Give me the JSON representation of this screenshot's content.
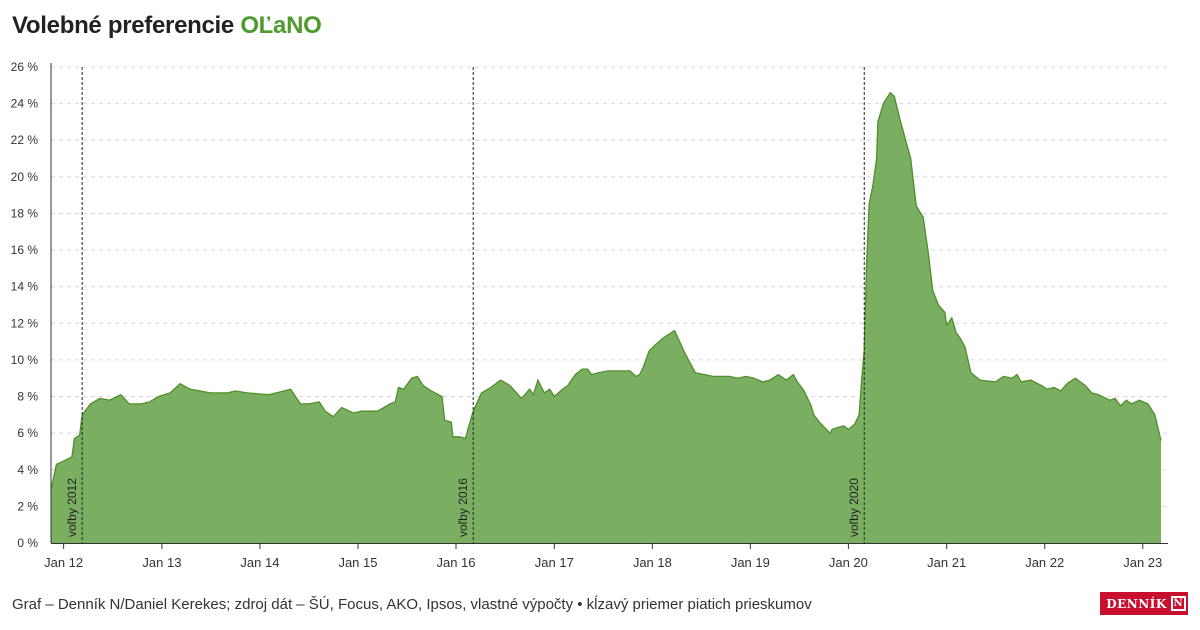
{
  "header": {
    "title_prefix": "Volebné preferencie ",
    "title_party": "OĽaNO"
  },
  "footer": {
    "source": "Graf – Denník N/Daniel Kerekes; zdroj dát – ŠÚ, Focus, AKO, Ipsos, vlastné výpočty • kĺzavý priemer piatich prieskumov",
    "logo_text": "DENNÍK",
    "logo_mark": "N"
  },
  "colors": {
    "area": "#7aaf62",
    "line": "#4e8f2a",
    "accent": "#4e9a2c",
    "grid": "#d8d8d8"
  },
  "chart_data": {
    "type": "area",
    "title": "Volebné preferencie OĽaNO",
    "xlabel": "",
    "ylabel": "",
    "ylim": [
      0,
      26
    ],
    "xlim": [
      "2011-11-15",
      "2023-04-05"
    ],
    "grid": true,
    "y_ticks": [
      "0 %",
      "2 %",
      "4 %",
      "6 %",
      "8 %",
      "10 %",
      "12 %",
      "14 %",
      "16 %",
      "18 %",
      "20 %",
      "22 %",
      "24 %",
      "26 %"
    ],
    "x_ticks": [
      {
        "date": "2012-01-01",
        "label": "Jan 12"
      },
      {
        "date": "2013-01-01",
        "label": "Jan 13"
      },
      {
        "date": "2014-01-01",
        "label": "Jan 14"
      },
      {
        "date": "2015-01-01",
        "label": "Jan 15"
      },
      {
        "date": "2016-01-01",
        "label": "Jan 16"
      },
      {
        "date": "2017-01-01",
        "label": "Jan 17"
      },
      {
        "date": "2018-01-01",
        "label": "Jan 18"
      },
      {
        "date": "2019-01-01",
        "label": "Jan 19"
      },
      {
        "date": "2020-01-01",
        "label": "Jan 20"
      },
      {
        "date": "2021-01-01",
        "label": "Jan 21"
      },
      {
        "date": "2022-01-01",
        "label": "Jan 22"
      },
      {
        "date": "2023-01-01",
        "label": "Jan 23"
      }
    ],
    "events": [
      {
        "date": "2012-03-10",
        "label": "voľby 2012"
      },
      {
        "date": "2016-03-05",
        "label": "voľby 2016"
      },
      {
        "date": "2020-02-29",
        "label": "voľby 2020"
      }
    ],
    "series": [
      {
        "points": [
          [
            "2011-11-15",
            2.9
          ],
          [
            "2011-12-05",
            4.3
          ],
          [
            "2012-01-05",
            4.5
          ],
          [
            "2012-02-01",
            4.7
          ],
          [
            "2012-02-10",
            5.7
          ],
          [
            "2012-03-01",
            5.9
          ],
          [
            "2012-03-10",
            7.0
          ],
          [
            "2012-04-10",
            7.6
          ],
          [
            "2012-05-15",
            7.9
          ],
          [
            "2012-06-20",
            7.8
          ],
          [
            "2012-08-01",
            8.1
          ],
          [
            "2012-09-01",
            7.6
          ],
          [
            "2012-10-15",
            7.6
          ],
          [
            "2012-11-15",
            7.7
          ],
          [
            "2012-12-20",
            8.0
          ],
          [
            "2013-02-01",
            8.2
          ],
          [
            "2013-03-10",
            8.7
          ],
          [
            "2013-04-15",
            8.4
          ],
          [
            "2013-07-01",
            8.2
          ],
          [
            "2013-09-01",
            8.2
          ],
          [
            "2013-10-01",
            8.3
          ],
          [
            "2013-11-15",
            8.2
          ],
          [
            "2014-02-01",
            8.1
          ],
          [
            "2014-04-01",
            8.3
          ],
          [
            "2014-04-25",
            8.4
          ],
          [
            "2014-06-01",
            7.6
          ],
          [
            "2014-07-01",
            7.6
          ],
          [
            "2014-08-10",
            7.7
          ],
          [
            "2014-09-01",
            7.2
          ],
          [
            "2014-10-01",
            6.9
          ],
          [
            "2014-11-01",
            7.4
          ],
          [
            "2014-12-15",
            7.1
          ],
          [
            "2015-01-15",
            7.2
          ],
          [
            "2015-03-15",
            7.2
          ],
          [
            "2015-05-01",
            7.6
          ],
          [
            "2015-05-20",
            7.7
          ],
          [
            "2015-06-01",
            8.5
          ],
          [
            "2015-06-20",
            8.4
          ],
          [
            "2015-07-20",
            9.0
          ],
          [
            "2015-08-10",
            9.1
          ],
          [
            "2015-09-01",
            8.6
          ],
          [
            "2015-10-01",
            8.3
          ],
          [
            "2015-11-10",
            8.0
          ],
          [
            "2015-11-20",
            6.7
          ],
          [
            "2015-12-15",
            6.6
          ],
          [
            "2015-12-20",
            5.8
          ],
          [
            "2016-01-15",
            5.8
          ],
          [
            "2016-02-05",
            5.7
          ],
          [
            "2016-02-20",
            6.5
          ],
          [
            "2016-03-05",
            7.2
          ],
          [
            "2016-04-05",
            8.2
          ],
          [
            "2016-05-10",
            8.5
          ],
          [
            "2016-06-15",
            8.9
          ],
          [
            "2016-07-20",
            8.6
          ],
          [
            "2016-09-01",
            7.9
          ],
          [
            "2016-10-01",
            8.4
          ],
          [
            "2016-10-15",
            8.1
          ],
          [
            "2016-11-01",
            8.9
          ],
          [
            "2016-11-25",
            8.2
          ],
          [
            "2016-12-15",
            8.4
          ],
          [
            "2017-01-01",
            8.0
          ],
          [
            "2017-02-01",
            8.4
          ],
          [
            "2017-02-20",
            8.6
          ],
          [
            "2017-03-20",
            9.2
          ],
          [
            "2017-04-15",
            9.5
          ],
          [
            "2017-05-05",
            9.5
          ],
          [
            "2017-05-20",
            9.2
          ],
          [
            "2017-06-15",
            9.3
          ],
          [
            "2017-07-20",
            9.4
          ],
          [
            "2017-10-10",
            9.4
          ],
          [
            "2017-11-01",
            9.1
          ],
          [
            "2017-11-15",
            9.2
          ],
          [
            "2017-12-01",
            9.7
          ],
          [
            "2017-12-20",
            10.5
          ],
          [
            "2018-01-10",
            10.8
          ],
          [
            "2018-02-10",
            11.2
          ],
          [
            "2018-03-25",
            11.6
          ],
          [
            "2018-05-01",
            10.4
          ],
          [
            "2018-06-10",
            9.3
          ],
          [
            "2018-07-15",
            9.2
          ],
          [
            "2018-08-15",
            9.1
          ],
          [
            "2018-09-15",
            9.1
          ],
          [
            "2018-10-15",
            9.1
          ],
          [
            "2018-11-15",
            9.0
          ],
          [
            "2018-12-15",
            9.1
          ],
          [
            "2019-01-15",
            9.0
          ],
          [
            "2019-02-15",
            8.8
          ],
          [
            "2019-03-15",
            8.9
          ],
          [
            "2019-04-15",
            9.2
          ],
          [
            "2019-05-15",
            8.9
          ],
          [
            "2019-06-10",
            9.2
          ],
          [
            "2019-06-25",
            8.8
          ],
          [
            "2019-07-20",
            8.3
          ],
          [
            "2019-08-15",
            7.5
          ],
          [
            "2019-08-25",
            7.0
          ],
          [
            "2019-09-15",
            6.6
          ],
          [
            "2019-10-25",
            6.0
          ],
          [
            "2019-11-01",
            6.2
          ],
          [
            "2019-11-20",
            6.3
          ],
          [
            "2019-12-15",
            6.4
          ],
          [
            "2020-01-01",
            6.2
          ],
          [
            "2020-01-25",
            6.5
          ],
          [
            "2020-02-10",
            7.0
          ],
          [
            "2020-02-20",
            9.0
          ],
          [
            "2020-02-29",
            10.5
          ],
          [
            "2020-03-08",
            15.0
          ],
          [
            "2020-03-18",
            18.5
          ],
          [
            "2020-04-01",
            19.5
          ],
          [
            "2020-04-15",
            21.0
          ],
          [
            "2020-04-20",
            23.0
          ],
          [
            "2020-05-10",
            24.0
          ],
          [
            "2020-06-05",
            24.6
          ],
          [
            "2020-06-20",
            24.4
          ],
          [
            "2020-07-10",
            23.2
          ],
          [
            "2020-08-01",
            22.0
          ],
          [
            "2020-08-20",
            21.0
          ],
          [
            "2020-09-01",
            19.5
          ],
          [
            "2020-09-10",
            18.4
          ],
          [
            "2020-10-05",
            17.8
          ],
          [
            "2020-10-25",
            15.8
          ],
          [
            "2020-11-10",
            13.8
          ],
          [
            "2020-12-01",
            13.0
          ],
          [
            "2020-12-25",
            12.6
          ],
          [
            "2021-01-01",
            11.9
          ],
          [
            "2021-01-20",
            12.3
          ],
          [
            "2021-02-05",
            11.5
          ],
          [
            "2021-02-20",
            11.2
          ],
          [
            "2021-03-10",
            10.7
          ],
          [
            "2021-04-01",
            9.3
          ],
          [
            "2021-05-05",
            8.9
          ],
          [
            "2021-07-01",
            8.8
          ],
          [
            "2021-08-01",
            9.1
          ],
          [
            "2021-09-01",
            9.0
          ],
          [
            "2021-09-20",
            9.2
          ],
          [
            "2021-10-05",
            8.8
          ],
          [
            "2021-11-10",
            8.9
          ],
          [
            "2021-12-20",
            8.6
          ],
          [
            "2022-01-10",
            8.4
          ],
          [
            "2022-02-05",
            8.5
          ],
          [
            "2022-03-01",
            8.3
          ],
          [
            "2022-03-25",
            8.7
          ],
          [
            "2022-04-25",
            9.0
          ],
          [
            "2022-06-01",
            8.6
          ],
          [
            "2022-06-25",
            8.2
          ],
          [
            "2022-07-20",
            8.1
          ],
          [
            "2022-09-01",
            7.8
          ],
          [
            "2022-09-20",
            7.9
          ],
          [
            "2022-10-10",
            7.5
          ],
          [
            "2022-11-01",
            7.8
          ],
          [
            "2022-11-20",
            7.6
          ],
          [
            "2022-12-20",
            7.8
          ],
          [
            "2023-01-20",
            7.6
          ],
          [
            "2023-02-15",
            7.0
          ],
          [
            "2023-03-10",
            5.6
          ]
        ]
      }
    ]
  }
}
